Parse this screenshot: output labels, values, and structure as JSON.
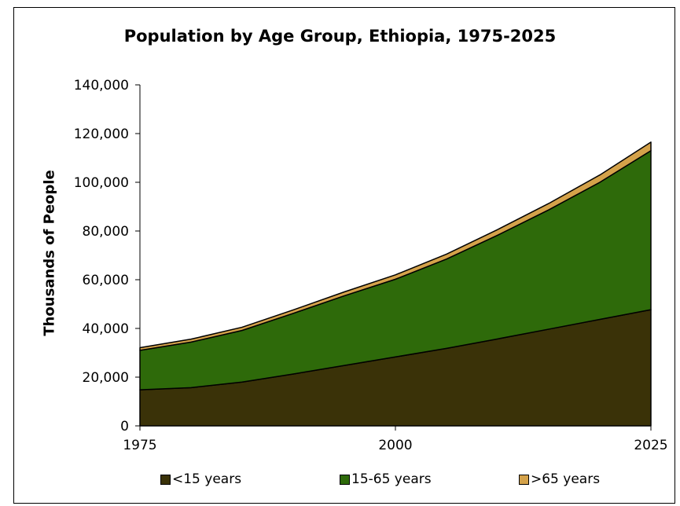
{
  "chart_data": {
    "type": "area",
    "stacked": true,
    "title": "Population by Age Group, Ethiopia, 1975-2025",
    "xlabel": "",
    "ylabel": "Thousands of People",
    "x": [
      1975,
      1980,
      1985,
      1990,
      1995,
      2000,
      2005,
      2010,
      2015,
      2020,
      2025
    ],
    "xticks": [
      "1975",
      "2000",
      "2025"
    ],
    "ylim": [
      0,
      140000
    ],
    "yticks": [
      "0",
      "20,000",
      "40,000",
      "60,000",
      "80,000",
      "100,000",
      "120,000",
      "140,000"
    ],
    "series": [
      {
        "name": "<15 years",
        "color": "#3a3208",
        "values": [
          14800,
          15700,
          18000,
          21300,
          24800,
          28300,
          31800,
          35700,
          39700,
          43700,
          47700
        ]
      },
      {
        "name": "15-65 years",
        "color": "#2e6a0a",
        "values": [
          16200,
          18700,
          21200,
          24900,
          28600,
          31900,
          36700,
          42600,
          49000,
          56300,
          65300
        ]
      },
      {
        "name": ">65 years",
        "color": "#d4a24a",
        "values": [
          1100,
          1200,
          1300,
          1400,
          1600,
          1800,
          2000,
          2300,
          2600,
          3000,
          3500
        ]
      }
    ],
    "grid": false,
    "legend_position": "bottom"
  }
}
